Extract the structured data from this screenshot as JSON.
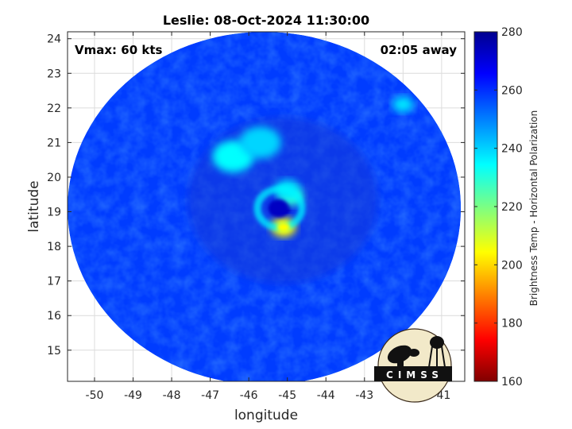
{
  "chart_data": {
    "type": "heatmap",
    "title": "Leslie: 08-Oct-2024 11:30:00",
    "xlabel": "longitude",
    "ylabel": "latitude",
    "xlim": [
      -50.7,
      -40.4
    ],
    "ylim": [
      14.1,
      24.2
    ],
    "xticks": [
      -50,
      -49,
      -48,
      -47,
      -46,
      -45,
      -44,
      -43,
      -42,
      -41
    ],
    "yticks": [
      15,
      16,
      17,
      18,
      19,
      20,
      21,
      22,
      23,
      24
    ],
    "grid": true,
    "annotations": {
      "vmax": "Vmax: 60 kts",
      "time_offset": "02:05 away"
    },
    "colorbar": {
      "label": "Brightness Temp - Horizontal Polarization",
      "range": [
        160,
        280
      ],
      "ticks": [
        160,
        180,
        200,
        220,
        240,
        260,
        280
      ],
      "colormap": "jet"
    },
    "storm_center": {
      "lon": -45.2,
      "lat": 19.1
    },
    "swath_center": {
      "lon": -45.6,
      "lat": 19.1
    },
    "swath_extent_deg": {
      "lon_half_width": 5.1,
      "lat_half_height": 5.1
    },
    "background_tb": 258,
    "features": [
      {
        "name": "eye",
        "lon": -45.2,
        "lat": 19.1,
        "tb": 272
      },
      {
        "name": "eyewall-south",
        "lon": -45.1,
        "lat": 18.55,
        "tb": 205
      },
      {
        "name": "eyewall-east",
        "lon": -44.9,
        "lat": 19.45,
        "tb": 230
      },
      {
        "name": "eyewall-north",
        "lon": -45.0,
        "lat": 19.65,
        "tb": 238
      },
      {
        "name": "outer-band-north",
        "lon": -46.4,
        "lat": 20.6,
        "tb": 235
      },
      {
        "name": "outer-band-northwest",
        "lon": -45.7,
        "lat": 21.0,
        "tb": 240
      },
      {
        "name": "small-cell-northeast",
        "lon": -42.0,
        "lat": 22.1,
        "tb": 238
      }
    ]
  },
  "logo": {
    "text": "CIMSS"
  },
  "colors": {
    "background_field": "#2a5ff5",
    "moat": "#1637d8",
    "eye": "#0c0fa0",
    "frame": "#262626",
    "grid": "#dcdcdc"
  }
}
